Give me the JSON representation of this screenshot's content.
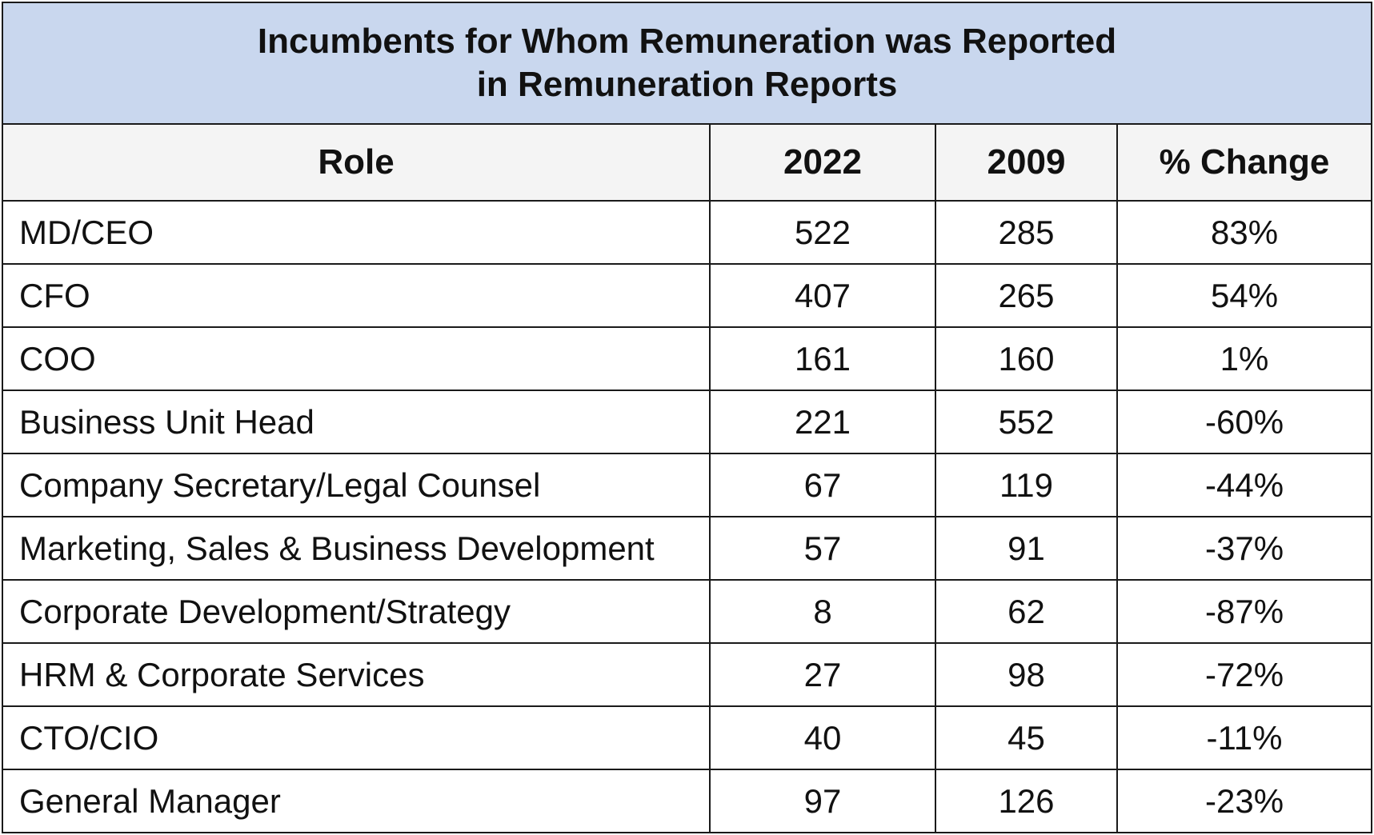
{
  "chart_data": {
    "type": "table",
    "title": "Incumbents for Whom Remuneration was Reported in Remuneration Reports",
    "title_lines": [
      "Incumbents for Whom Remuneration was Reported",
      "in Remuneration Reports"
    ],
    "columns": [
      "Role",
      "2022",
      "2009",
      "% Change"
    ],
    "rows": [
      {
        "role": "MD/CEO",
        "v2022": "522",
        "v2009": "285",
        "change": "83%"
      },
      {
        "role": "CFO",
        "v2022": "407",
        "v2009": "265",
        "change": "54%"
      },
      {
        "role": "COO",
        "v2022": "161",
        "v2009": "160",
        "change": "1%"
      },
      {
        "role": "Business Unit Head",
        "v2022": "221",
        "v2009": "552",
        "change": "-60%"
      },
      {
        "role": "Company Secretary/Legal Counsel",
        "v2022": "67",
        "v2009": "119",
        "change": "-44%"
      },
      {
        "role": "Marketing, Sales & Business Development",
        "v2022": "57",
        "v2009": "91",
        "change": "-37%"
      },
      {
        "role": "Corporate Development/Strategy",
        "v2022": "8",
        "v2009": "62",
        "change": "-87%"
      },
      {
        "role": "HRM & Corporate Services",
        "v2022": "27",
        "v2009": "98",
        "change": "-72%"
      },
      {
        "role": "CTO/CIO",
        "v2022": "40",
        "v2009": "45",
        "change": "-11%"
      },
      {
        "role": "General Manager",
        "v2022": "97",
        "v2009": "126",
        "change": "-23%"
      }
    ],
    "colors": {
      "title_background": "#c9d7ee",
      "header_background": "#f4f4f4",
      "border": "#1a1a1a"
    }
  }
}
